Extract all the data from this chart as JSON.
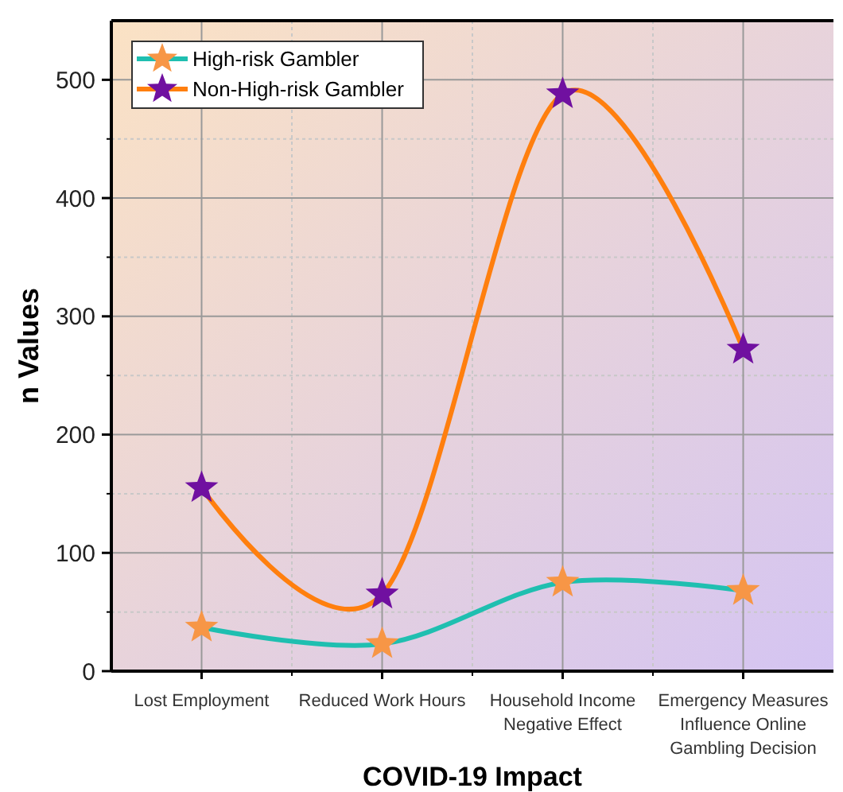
{
  "chart_data": {
    "type": "line",
    "xlabel": "COVID-19 Impact",
    "ylabel": "n Values",
    "categories": [
      "Lost Employment",
      "Reduced Work Hours",
      "Household Income Negative Effect",
      "Emergency Measures Influence Online Gambling Decision"
    ],
    "series": [
      {
        "name": "High-risk Gambler",
        "color": "#1fbfb0",
        "colors": [
          "#f79646",
          "#f79646",
          "#f79646",
          "#f79646"
        ],
        "values": [
          37,
          23,
          75,
          68
        ]
      },
      {
        "name": "Non-High-risk Gambler",
        "color": "#ff7f0e",
        "colors": [
          "#7010a0",
          "#7010a0",
          "#7010a0",
          "#7010a0"
        ],
        "values": [
          155,
          65,
          488,
          272
        ]
      }
    ],
    "ylim": [
      0,
      550
    ],
    "yticks": [
      0,
      100,
      200,
      300,
      400,
      500
    ],
    "grid": true,
    "legend": "top left",
    "marker": "star",
    "line_style": "solid"
  }
}
